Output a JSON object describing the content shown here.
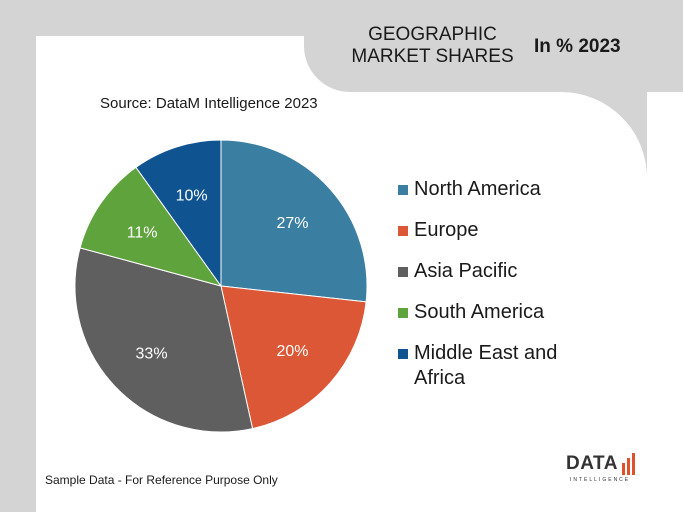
{
  "header": {
    "title": "GEOGRAPHIC MARKET SHARES",
    "year_label": "In % 2023"
  },
  "source_text": "Source: DataM Intelligence 2023",
  "footnote": "Sample Data - For Reference Purpose Only",
  "logo": {
    "word": "DATA",
    "sub": "INTELLIGENCE",
    "bar_color": "#e0522b"
  },
  "chart_data": {
    "type": "pie",
    "title": "GEOGRAPHIC MARKET SHARES",
    "subtitle": "In % 2023",
    "start_angle_deg": 0,
    "direction": "clockwise",
    "legend_position": "right",
    "slices": [
      {
        "label": "North America",
        "value": 27,
        "display": "27%",
        "color": "#3a7ea1"
      },
      {
        "label": "Europe",
        "value": 20,
        "display": "20%",
        "color": "#dc5735"
      },
      {
        "label": "Asia Pacific",
        "value": 33,
        "display": "33%",
        "color": "#5f5f5f"
      },
      {
        "label": "South America",
        "value": 11,
        "display": "11%",
        "color": "#5fa33c"
      },
      {
        "label": "Middle East and Africa",
        "value": 10,
        "display": "10%",
        "color": "#0f5390"
      }
    ]
  }
}
